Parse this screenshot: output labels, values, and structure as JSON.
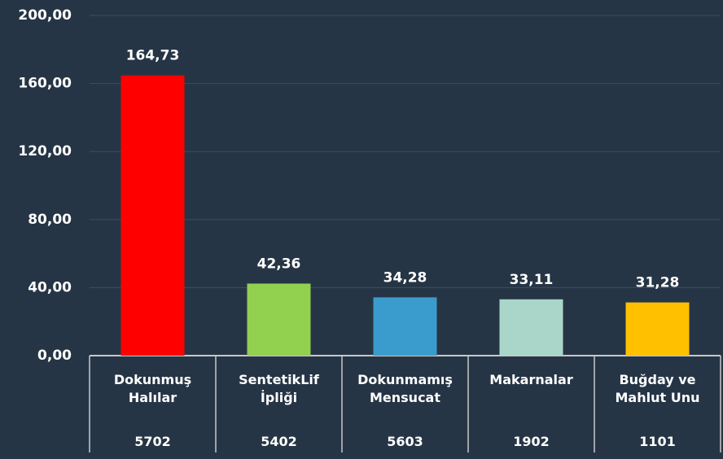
{
  "chart_data": {
    "type": "bar",
    "categories": [
      "Dokunmuş Halılar",
      "SentetikLif İpliği",
      "Dokunmamış Mensucat",
      "Makarnalar",
      "Buğday ve Mahlut Unu"
    ],
    "codes": [
      "5702",
      "5402",
      "5603",
      "1902",
      "1101"
    ],
    "values": [
      164.73,
      42.36,
      34.28,
      33.11,
      31.28
    ],
    "value_labels": [
      "164,73",
      "42,36",
      "34,28",
      "33,11",
      "31,28"
    ],
    "colors": [
      "#ff0000",
      "#92d050",
      "#3a9ccc",
      "#a9d6c9",
      "#ffc000"
    ],
    "ylim": [
      0,
      200
    ],
    "yticks": [
      {
        "value": 0,
        "label": "0,00"
      },
      {
        "value": 40,
        "label": "40,00"
      },
      {
        "value": 80,
        "label": "80,00"
      },
      {
        "value": 120,
        "label": "120,00"
      },
      {
        "value": 160,
        "label": "160,00"
      },
      {
        "value": 200,
        "label": "200,00"
      }
    ],
    "grid": true
  }
}
